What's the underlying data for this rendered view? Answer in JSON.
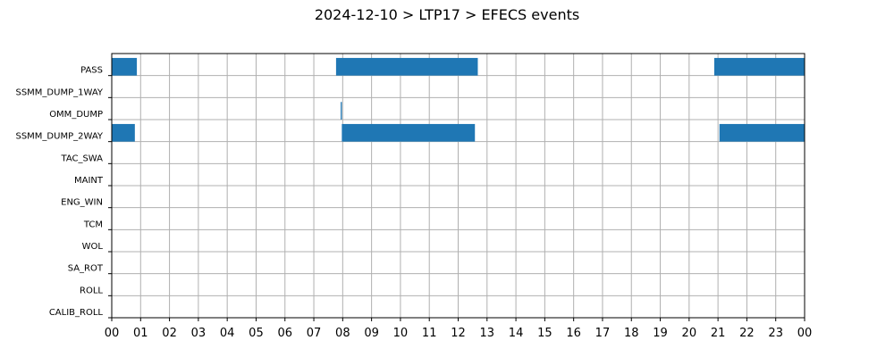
{
  "chart_data": {
    "type": "gantt",
    "title": "2024-12-10 > LTP17 > EFECS events",
    "x_range": [
      0,
      24
    ],
    "x_unit": "hour",
    "x_tick_labels": [
      "00",
      "01",
      "02",
      "03",
      "04",
      "05",
      "06",
      "07",
      "08",
      "09",
      "10",
      "11",
      "12",
      "13",
      "14",
      "15",
      "16",
      "17",
      "18",
      "19",
      "20",
      "21",
      "22",
      "23",
      "00"
    ],
    "categories": [
      "PASS",
      "SSMM_DUMP_1WAY",
      "OMM_DUMP",
      "SSMM_DUMP_2WAY",
      "TAC_SWA",
      "MAINT",
      "ENG_WIN",
      "TCM",
      "WOL",
      "SA_ROT",
      "ROLL",
      "CALIB_ROLL"
    ],
    "grid": true,
    "bar_color": "#1f77b4",
    "events": [
      {
        "category": "PASS",
        "start": 0.0,
        "end": 0.87
      },
      {
        "category": "PASS",
        "start": 7.77,
        "end": 12.68
      },
      {
        "category": "PASS",
        "start": 20.87,
        "end": 24.0
      },
      {
        "category": "OMM_DUMP",
        "start": 7.93,
        "end": 7.97
      },
      {
        "category": "SSMM_DUMP_2WAY",
        "start": 0.0,
        "end": 0.8
      },
      {
        "category": "SSMM_DUMP_2WAY",
        "start": 7.97,
        "end": 12.58
      },
      {
        "category": "SSMM_DUMP_2WAY",
        "start": 21.05,
        "end": 24.0
      }
    ]
  }
}
